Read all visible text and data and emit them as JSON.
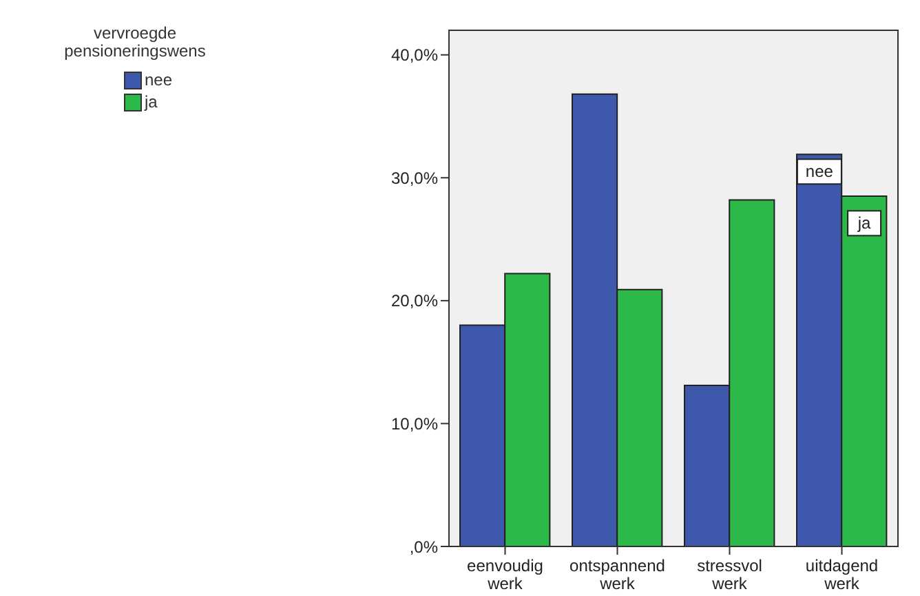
{
  "chart_data": {
    "type": "bar",
    "legend_title": "vervroegde pensioneringswens",
    "categories": [
      "eenvoudig werk",
      "ontspannend werk",
      "stressvol werk",
      "uitdagend werk"
    ],
    "series": [
      {
        "name": "nee",
        "color": "#3e58ab",
        "values": [
          18.0,
          36.8,
          13.1,
          31.9
        ]
      },
      {
        "name": "ja",
        "color": "#2db84a",
        "values": [
          22.2,
          20.9,
          28.2,
          28.5
        ]
      }
    ],
    "ylim": [
      0,
      42
    ],
    "yticks": [
      {
        "value": 0,
        "label": ",0%"
      },
      {
        "value": 10,
        "label": "10,0%"
      },
      {
        "value": 20,
        "label": "20,0%"
      },
      {
        "value": 30,
        "label": "30,0%"
      },
      {
        "value": 40,
        "label": "40,0%"
      }
    ],
    "annotations": [
      {
        "text": "nee",
        "x": "uitdagend werk",
        "y": 30.5
      },
      {
        "text": "ja",
        "x": "uitdagend werk",
        "y": 26.3
      }
    ],
    "legend": "top left"
  }
}
